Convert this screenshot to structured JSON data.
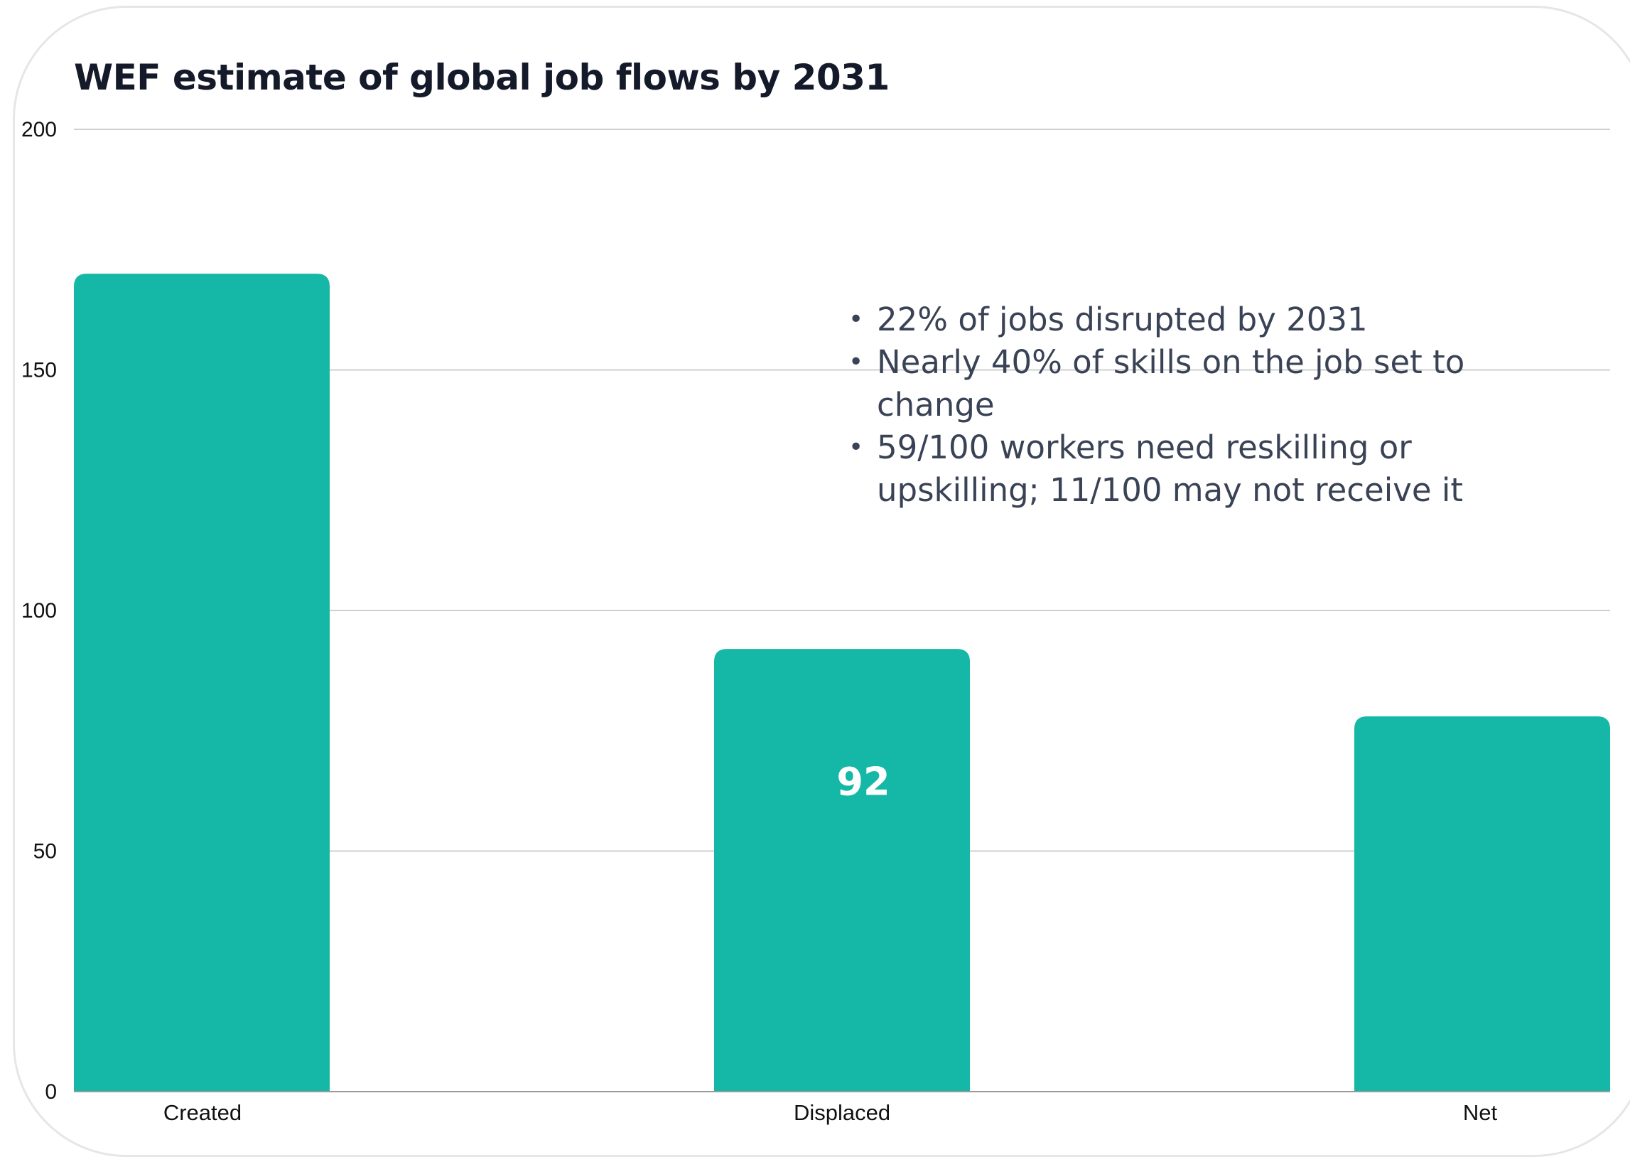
{
  "chart_data": {
    "type": "bar",
    "title": "WEF estimate of global job flows by 2031",
    "categories": [
      "Created",
      "Displaced",
      "Net"
    ],
    "values": [
      170,
      92,
      78
    ],
    "data_labels": [
      "",
      "92",
      ""
    ],
    "ylim": [
      0,
      200
    ],
    "yticks": [
      "0",
      "50",
      "100",
      "150",
      "200"
    ],
    "grid": true,
    "bar_color": "#15b8a6",
    "annotations": [
      "22% of jobs disrupted by 2031",
      "Nearly 40% of skills on the job set to change",
      "59/100 workers need reskilling or upskilling; 11/100 may not receive it"
    ]
  }
}
